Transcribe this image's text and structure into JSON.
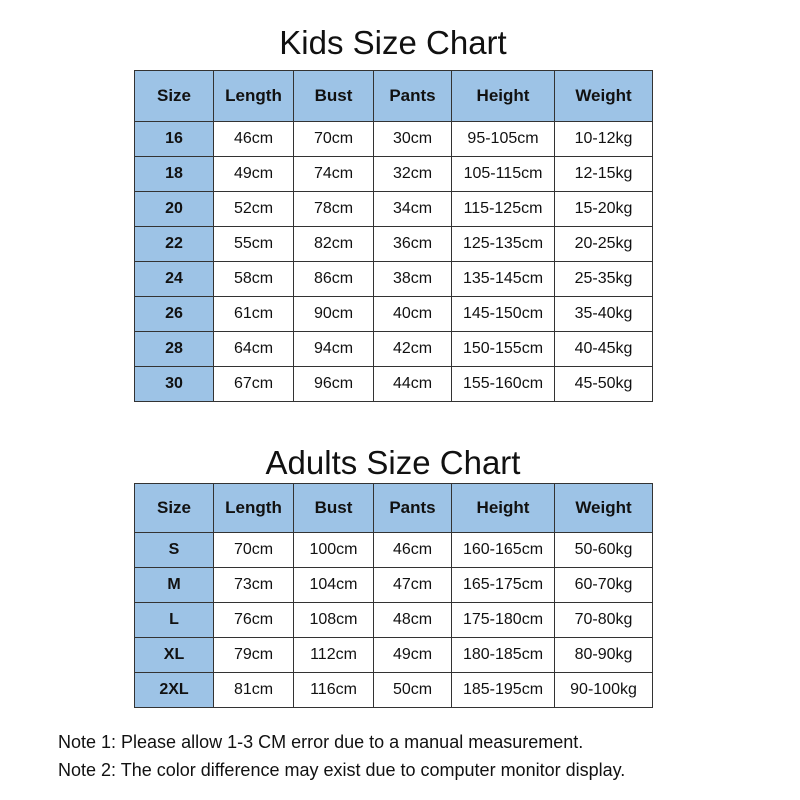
{
  "kids": {
    "title": "Kids Size Chart",
    "headers": [
      "Size",
      "Length",
      "Bust",
      "Pants",
      "Height",
      "Weight"
    ],
    "rows": [
      [
        "16",
        "46cm",
        "70cm",
        "30cm",
        "95-105cm",
        "10-12kg"
      ],
      [
        "18",
        "49cm",
        "74cm",
        "32cm",
        "105-115cm",
        "12-15kg"
      ],
      [
        "20",
        "52cm",
        "78cm",
        "34cm",
        "115-125cm",
        "15-20kg"
      ],
      [
        "22",
        "55cm",
        "82cm",
        "36cm",
        "125-135cm",
        "20-25kg"
      ],
      [
        "24",
        "58cm",
        "86cm",
        "38cm",
        "135-145cm",
        "25-35kg"
      ],
      [
        "26",
        "61cm",
        "90cm",
        "40cm",
        "145-150cm",
        "35-40kg"
      ],
      [
        "28",
        "64cm",
        "94cm",
        "42cm",
        "150-155cm",
        "40-45kg"
      ],
      [
        "30",
        "67cm",
        "96cm",
        "44cm",
        "155-160cm",
        "45-50kg"
      ]
    ]
  },
  "adults": {
    "title": "Adults Size Chart",
    "headers": [
      "Size",
      "Length",
      "Bust",
      "Pants",
      "Height",
      "Weight"
    ],
    "rows": [
      [
        "S",
        "70cm",
        "100cm",
        "46cm",
        "160-165cm",
        "50-60kg"
      ],
      [
        "M",
        "73cm",
        "104cm",
        "47cm",
        "165-175cm",
        "60-70kg"
      ],
      [
        "L",
        "76cm",
        "108cm",
        "48cm",
        "175-180cm",
        "70-80kg"
      ],
      [
        "XL",
        "79cm",
        "112cm",
        "49cm",
        "180-185cm",
        "80-90kg"
      ],
      [
        "2XL",
        "81cm",
        "116cm",
        "50cm",
        "185-195cm",
        "90-100kg"
      ]
    ]
  },
  "notes": [
    "Note 1: Please allow 1-3 CM error due to a manual measurement.",
    "Note 2: The color difference may exist due to computer monitor display."
  ],
  "colors": {
    "header_fill": "#9dc3e6",
    "border": "#333333"
  }
}
